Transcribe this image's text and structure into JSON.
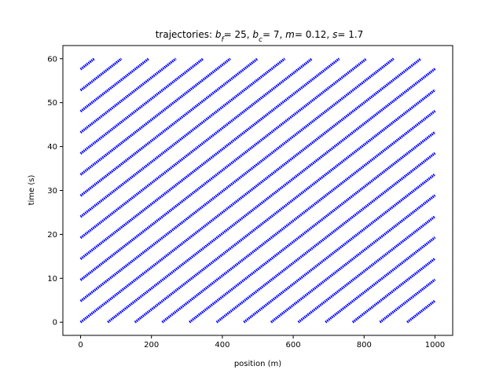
{
  "chart_data": {
    "type": "line",
    "title": {
      "prefix": "trajectories: ",
      "b_f_symbol": "b",
      "b_f_sub": "f",
      "b_f_value": "= 25, ",
      "b_c_symbol": "b",
      "b_c_sub": "c",
      "b_c_value": "= 7, ",
      "m_symbol": "m",
      "m_value": "= 0.12, ",
      "s_symbol": "s",
      "s_value": "= 1.7"
    },
    "xlabel": "position (m)",
    "ylabel": "time (s)",
    "xlim": [
      -50,
      1050
    ],
    "ylim": [
      -3,
      63
    ],
    "xticks": [
      0,
      200,
      400,
      600,
      800,
      1000
    ],
    "yticks": [
      0,
      10,
      20,
      30,
      40,
      50,
      60
    ],
    "series_color": "#0000ff",
    "grid": false,
    "legend": "none",
    "trajectory_family": {
      "entry_interval_s": 4.8,
      "transit_time_s": 62.5,
      "road_start_m": 0,
      "road_end_m": 1000,
      "t_min_s": 0,
      "t_max_s": 60,
      "entry_times_s": [
        -57.6,
        -52.8,
        -48.0,
        -43.2,
        -38.4,
        -33.6,
        -28.8,
        -24.0,
        -19.2,
        -14.4,
        -9.6,
        -4.8,
        0.0,
        4.8,
        9.6,
        14.4,
        19.2,
        24.0,
        28.8,
        33.6,
        38.4,
        43.2,
        48.0,
        52.8,
        57.6
      ]
    }
  }
}
